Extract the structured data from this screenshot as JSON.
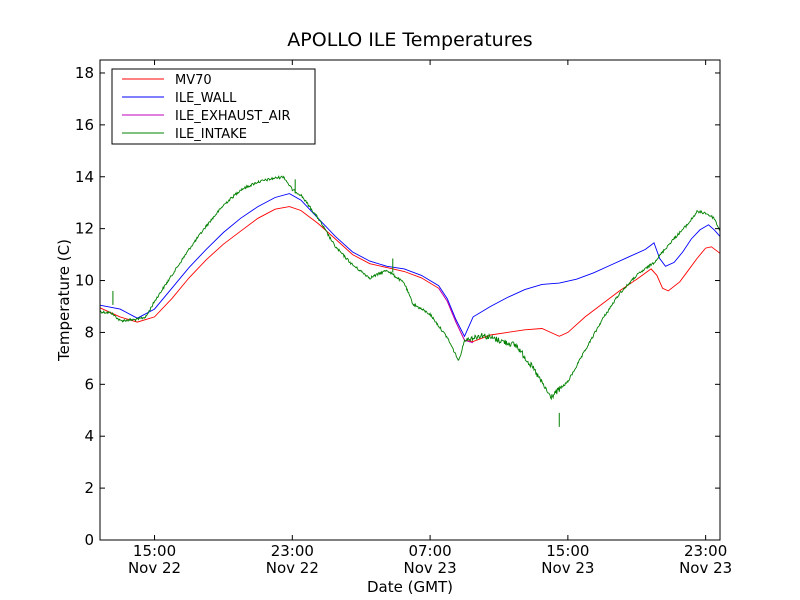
{
  "chart_data": {
    "type": "line",
    "title": "APOLLO ILE Temperatures",
    "xlabel": "Date (GMT)",
    "ylabel": "Temperature (C)",
    "xlim": [
      "2012-11-22T11:50",
      "2012-11-23T23:50"
    ],
    "ylim": [
      0,
      18.5
    ],
    "yticks": [
      0,
      2,
      4,
      6,
      8,
      10,
      12,
      14,
      16,
      18
    ],
    "xticks": [
      {
        "t": "2012-11-22T15:00",
        "label1": "15:00",
        "label2": "Nov 22"
      },
      {
        "t": "2012-11-22T23:00",
        "label1": "23:00",
        "label2": "Nov 22"
      },
      {
        "t": "2012-11-23T07:00",
        "label1": "07:00",
        "label2": "Nov 23"
      },
      {
        "t": "2012-11-23T15:00",
        "label1": "15:00",
        "label2": "Nov 23"
      },
      {
        "t": "2012-11-23T23:00",
        "label1": "23:00",
        "label2": "Nov 23"
      }
    ],
    "grid": false,
    "legend_position": "upper-left",
    "series": [
      {
        "name": "MV70",
        "color": "#ff0000",
        "points": [
          [
            "2012-11-22T11:50",
            8.95
          ],
          [
            "2012-11-22T13:00",
            8.6
          ],
          [
            "2012-11-22T14:00",
            8.4
          ],
          [
            "2012-11-22T15:00",
            8.6
          ],
          [
            "2012-11-22T16:00",
            9.3
          ],
          [
            "2012-11-22T17:00",
            10.1
          ],
          [
            "2012-11-22T18:00",
            10.8
          ],
          [
            "2012-11-22T19:00",
            11.4
          ],
          [
            "2012-11-22T20:00",
            11.9
          ],
          [
            "2012-11-22T21:00",
            12.4
          ],
          [
            "2012-11-22T22:00",
            12.75
          ],
          [
            "2012-11-22T22:50",
            12.85
          ],
          [
            "2012-11-22T23:30",
            12.7
          ],
          [
            "2012-11-23T00:30",
            12.2
          ],
          [
            "2012-11-23T01:30",
            11.6
          ],
          [
            "2012-11-23T02:30",
            11.0
          ],
          [
            "2012-11-23T03:30",
            10.65
          ],
          [
            "2012-11-23T04:30",
            10.5
          ],
          [
            "2012-11-23T05:30",
            10.35
          ],
          [
            "2012-11-23T06:30",
            10.1
          ],
          [
            "2012-11-23T07:30",
            9.7
          ],
          [
            "2012-11-23T08:00",
            9.2
          ],
          [
            "2012-11-23T08:30",
            8.4
          ],
          [
            "2012-11-23T09:00",
            7.7
          ],
          [
            "2012-11-23T09:30",
            7.65
          ],
          [
            "2012-11-23T10:30",
            7.9
          ],
          [
            "2012-11-23T11:30",
            8.0
          ],
          [
            "2012-11-23T12:30",
            8.1
          ],
          [
            "2012-11-23T13:30",
            8.15
          ],
          [
            "2012-11-23T14:00",
            8.0
          ],
          [
            "2012-11-23T14:30",
            7.85
          ],
          [
            "2012-11-23T15:00",
            8.0
          ],
          [
            "2012-11-23T16:00",
            8.6
          ],
          [
            "2012-11-23T17:00",
            9.1
          ],
          [
            "2012-11-23T18:00",
            9.6
          ],
          [
            "2012-11-23T19:00",
            10.05
          ],
          [
            "2012-11-23T19:50",
            10.45
          ],
          [
            "2012-11-23T20:10",
            10.2
          ],
          [
            "2012-11-23T20:30",
            9.7
          ],
          [
            "2012-11-23T20:50",
            9.6
          ],
          [
            "2012-11-23T21:30",
            9.95
          ],
          [
            "2012-11-23T22:00",
            10.4
          ],
          [
            "2012-11-23T22:30",
            10.85
          ],
          [
            "2012-11-23T23:00",
            11.25
          ],
          [
            "2012-11-23T23:20",
            11.3
          ],
          [
            "2012-11-23T23:50",
            11.05
          ]
        ]
      },
      {
        "name": "ILE_WALL",
        "color": "#0000ff",
        "points": [
          [
            "2012-11-22T11:50",
            9.05
          ],
          [
            "2012-11-22T13:00",
            8.9
          ],
          [
            "2012-11-22T14:00",
            8.55
          ],
          [
            "2012-11-22T15:00",
            8.9
          ],
          [
            "2012-11-22T16:00",
            9.7
          ],
          [
            "2012-11-22T17:00",
            10.5
          ],
          [
            "2012-11-22T18:00",
            11.2
          ],
          [
            "2012-11-22T19:00",
            11.85
          ],
          [
            "2012-11-22T20:00",
            12.4
          ],
          [
            "2012-11-22T21:00",
            12.85
          ],
          [
            "2012-11-22T22:00",
            13.2
          ],
          [
            "2012-11-22T22:50",
            13.35
          ],
          [
            "2012-11-22T23:30",
            13.1
          ],
          [
            "2012-11-23T00:30",
            12.4
          ],
          [
            "2012-11-23T01:30",
            11.7
          ],
          [
            "2012-11-23T02:30",
            11.1
          ],
          [
            "2012-11-23T03:30",
            10.75
          ],
          [
            "2012-11-23T04:30",
            10.55
          ],
          [
            "2012-11-23T05:30",
            10.45
          ],
          [
            "2012-11-23T06:30",
            10.2
          ],
          [
            "2012-11-23T07:30",
            9.8
          ],
          [
            "2012-11-23T08:00",
            9.3
          ],
          [
            "2012-11-23T08:30",
            8.5
          ],
          [
            "2012-11-23T09:00",
            7.85
          ],
          [
            "2012-11-23T09:30",
            8.6
          ],
          [
            "2012-11-23T10:30",
            9.0
          ],
          [
            "2012-11-23T11:30",
            9.35
          ],
          [
            "2012-11-23T12:30",
            9.65
          ],
          [
            "2012-11-23T13:30",
            9.85
          ],
          [
            "2012-11-23T14:30",
            9.9
          ],
          [
            "2012-11-23T15:30",
            10.05
          ],
          [
            "2012-11-23T16:30",
            10.3
          ],
          [
            "2012-11-23T17:30",
            10.6
          ],
          [
            "2012-11-23T18:30",
            10.9
          ],
          [
            "2012-11-23T19:30",
            11.2
          ],
          [
            "2012-11-23T20:00",
            11.45
          ],
          [
            "2012-11-23T20:20",
            10.85
          ],
          [
            "2012-11-23T20:40",
            10.55
          ],
          [
            "2012-11-23T21:10",
            10.7
          ],
          [
            "2012-11-23T21:40",
            11.1
          ],
          [
            "2012-11-23T22:10",
            11.6
          ],
          [
            "2012-11-23T22:40",
            11.95
          ],
          [
            "2012-11-23T23:10",
            12.15
          ],
          [
            "2012-11-23T23:30",
            11.95
          ],
          [
            "2012-11-23T23:50",
            11.7
          ]
        ]
      },
      {
        "name": "ILE_EXHAUST_AIR",
        "color": "#bf00bf",
        "points": [
          [
            "2012-11-23T07:30",
            9.7
          ],
          [
            "2012-11-23T08:00",
            9.2
          ],
          [
            "2012-11-23T08:30",
            8.4
          ],
          [
            "2012-11-23T09:00",
            7.7
          ],
          [
            "2012-11-23T09:30",
            7.6
          ]
        ]
      },
      {
        "name": "ILE_INTAKE",
        "color": "#008000",
        "noisy": true,
        "points": [
          [
            "2012-11-22T11:50",
            8.8
          ],
          [
            "2012-11-22T12:30",
            8.75
          ],
          [
            "2012-11-22T13:00",
            8.45
          ],
          [
            "2012-11-22T14:00",
            8.5
          ],
          [
            "2012-11-22T14:30",
            8.6
          ],
          [
            "2012-11-22T15:00",
            9.2
          ],
          [
            "2012-11-22T16:00",
            10.2
          ],
          [
            "2012-11-22T17:00",
            11.2
          ],
          [
            "2012-11-22T18:00",
            12.1
          ],
          [
            "2012-11-22T19:00",
            12.9
          ],
          [
            "2012-11-22T20:00",
            13.5
          ],
          [
            "2012-11-22T21:00",
            13.8
          ],
          [
            "2012-11-22T22:00",
            13.95
          ],
          [
            "2012-11-22T22:30",
            14.0
          ],
          [
            "2012-11-22T23:00",
            13.5
          ],
          [
            "2012-11-22T23:30",
            13.3
          ],
          [
            "2012-11-23T00:30",
            12.4
          ],
          [
            "2012-11-23T01:30",
            11.3
          ],
          [
            "2012-11-23T02:30",
            10.6
          ],
          [
            "2012-11-23T03:30",
            10.1
          ],
          [
            "2012-11-23T04:30",
            10.4
          ],
          [
            "2012-11-23T05:30",
            9.9
          ],
          [
            "2012-11-23T06:00",
            9.1
          ],
          [
            "2012-11-23T07:00",
            8.7
          ],
          [
            "2012-11-23T08:00",
            7.8
          ],
          [
            "2012-11-23T08:40",
            6.9
          ],
          [
            "2012-11-23T09:00",
            7.7
          ],
          [
            "2012-11-23T10:00",
            7.9
          ],
          [
            "2012-11-23T11:00",
            7.7
          ],
          [
            "2012-11-23T12:00",
            7.5
          ],
          [
            "2012-11-23T13:00",
            6.6
          ],
          [
            "2012-11-23T14:00",
            5.5
          ],
          [
            "2012-11-23T15:00",
            6.1
          ],
          [
            "2012-11-23T16:00",
            7.3
          ],
          [
            "2012-11-23T17:00",
            8.5
          ],
          [
            "2012-11-23T18:00",
            9.5
          ],
          [
            "2012-11-23T19:00",
            10.2
          ],
          [
            "2012-11-23T20:00",
            10.7
          ],
          [
            "2012-11-23T21:00",
            11.5
          ],
          [
            "2012-11-23T22:00",
            12.2
          ],
          [
            "2012-11-23T22:30",
            12.65
          ],
          [
            "2012-11-23T23:00",
            12.6
          ],
          [
            "2012-11-23T23:30",
            12.4
          ],
          [
            "2012-11-23T23:50",
            11.9
          ]
        ],
        "spikes": [
          [
            "2012-11-22T12:35",
            9.6
          ],
          [
            "2012-11-22T23:10",
            13.9
          ],
          [
            "2012-11-23T04:50",
            10.85
          ],
          [
            "2012-11-23T14:30",
            4.9
          ]
        ]
      }
    ]
  }
}
